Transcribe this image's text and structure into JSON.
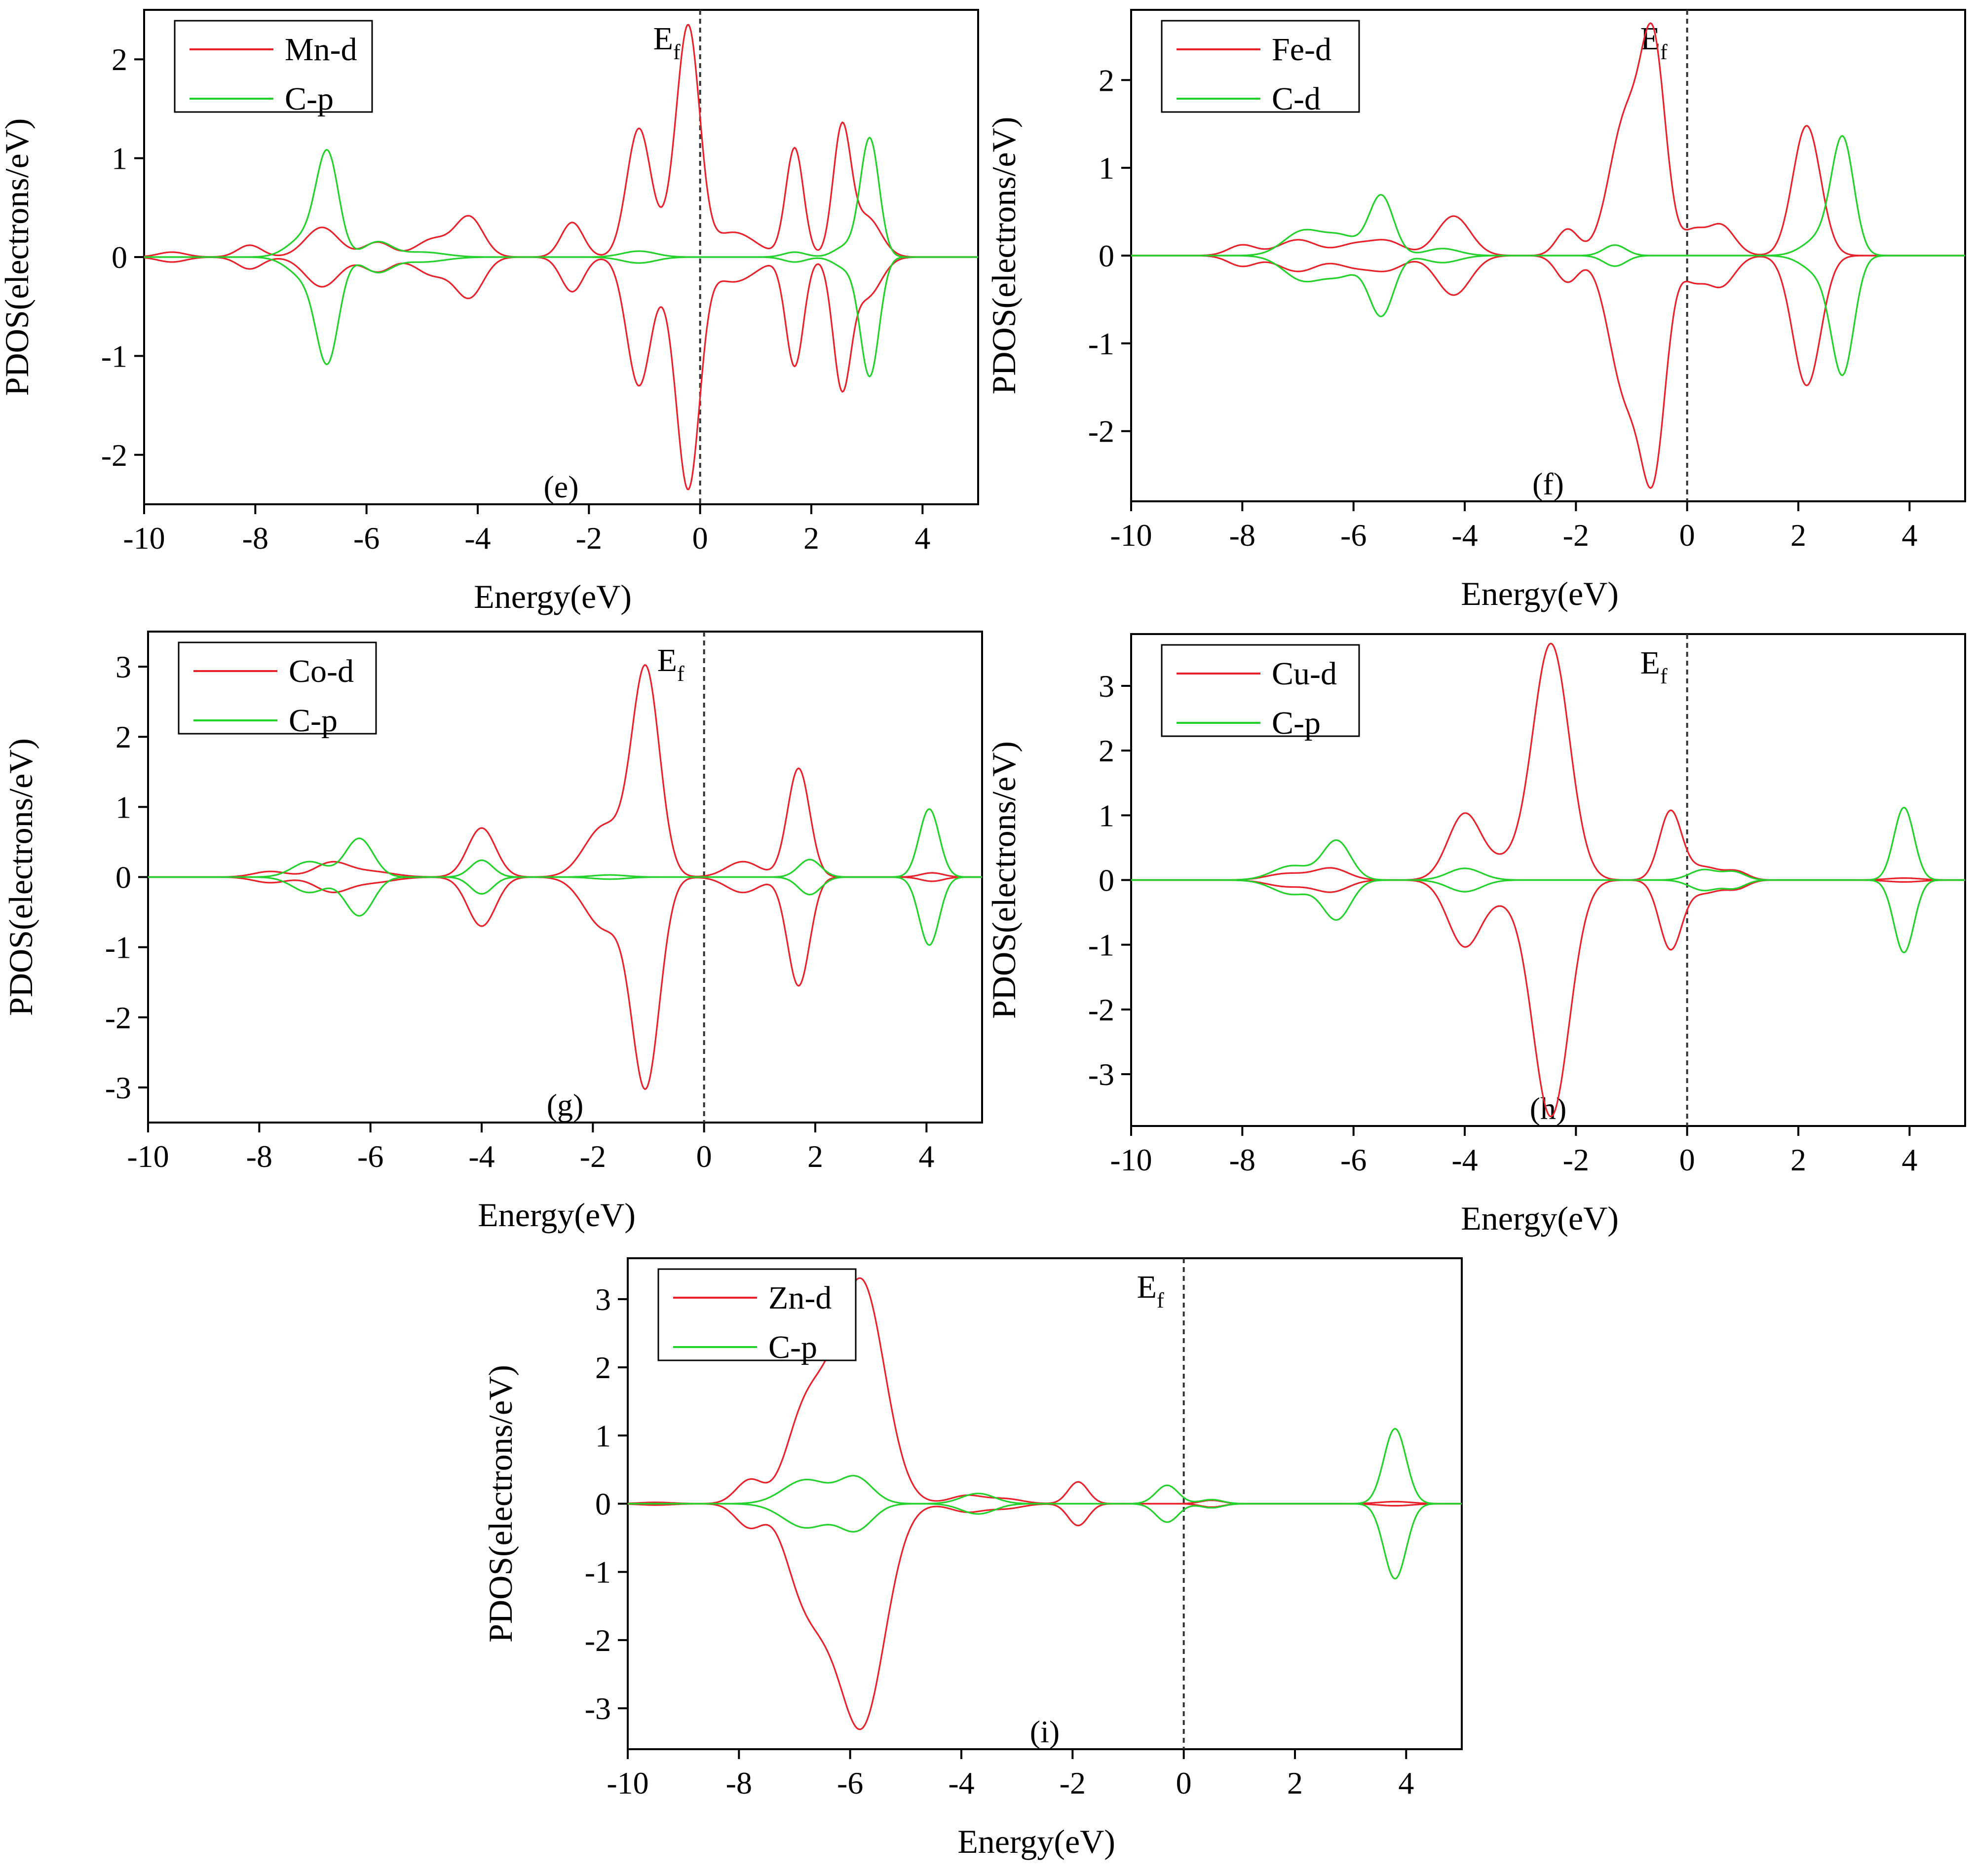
{
  "figure": {
    "description_free": true
  },
  "chart_data": [
    {
      "type": "line",
      "panel_label": "(e)",
      "xlabel": "Energy(eV)",
      "ylabel": "PDOS(electrons/eV)",
      "xlim": [
        -10,
        5
      ],
      "ylim": [
        -2.5,
        2.5
      ],
      "xticks": [
        -10,
        -8,
        -6,
        -4,
        -2,
        0,
        2,
        4
      ],
      "yticks": [
        -2,
        -1,
        0,
        1,
        2
      ],
      "fermi_label": "E",
      "fermi_sub": "f",
      "fermi_x": 0,
      "series": [
        {
          "name": "Mn-d",
          "color": "#e8212b",
          "peaks": [
            [
              -9.5,
              0.05,
              0.25
            ],
            [
              -8.1,
              0.12,
              0.22
            ],
            [
              -6.8,
              0.3,
              0.3
            ],
            [
              -5.8,
              0.15,
              0.25
            ],
            [
              -4.8,
              0.18,
              0.3
            ],
            [
              -4.15,
              0.4,
              0.25
            ],
            [
              -2.3,
              0.35,
              0.2
            ],
            [
              -1.1,
              1.3,
              0.22
            ],
            [
              -0.45,
              0.35,
              0.2
            ],
            [
              -0.2,
              2.15,
              0.2
            ],
            [
              0.6,
              0.25,
              0.4
            ],
            [
              1.7,
              1.1,
              0.16
            ],
            [
              2.55,
              1.28,
              0.16
            ],
            [
              3.0,
              0.4,
              0.25
            ]
          ]
        },
        {
          "name": "C-p",
          "color": "#22d12a",
          "peaks": [
            [
              -7.1,
              0.2,
              0.3
            ],
            [
              -6.7,
              1.0,
              0.2
            ],
            [
              -5.8,
              0.15,
              0.25
            ],
            [
              -5.0,
              0.05,
              0.4
            ],
            [
              -1.1,
              0.06,
              0.3
            ],
            [
              1.7,
              0.05,
              0.2
            ],
            [
              2.6,
              0.1,
              0.2
            ],
            [
              3.05,
              1.2,
              0.17
            ]
          ]
        }
      ]
    },
    {
      "type": "line",
      "panel_label": "(f)",
      "xlabel": "Energy(eV)",
      "ylabel": "PDOS(electrons/eV)",
      "xlim": [
        -10,
        5
      ],
      "ylim": [
        -2.8,
        2.8
      ],
      "xticks": [
        -10,
        -8,
        -6,
        -4,
        -2,
        0,
        2,
        4
      ],
      "yticks": [
        -2,
        -1,
        0,
        1,
        2
      ],
      "fermi_label": "E",
      "fermi_sub": "f",
      "fermi_x": 0,
      "series": [
        {
          "name": "Fe-d",
          "color": "#e8212b",
          "peaks": [
            [
              -8.0,
              0.12,
              0.25
            ],
            [
              -7.0,
              0.18,
              0.35
            ],
            [
              -6.0,
              0.12,
              0.3
            ],
            [
              -5.4,
              0.16,
              0.3
            ],
            [
              -4.2,
              0.45,
              0.3
            ],
            [
              -2.15,
              0.3,
              0.2
            ],
            [
              -1.1,
              1.55,
              0.3
            ],
            [
              -0.6,
              2.2,
              0.22
            ],
            [
              0.6,
              0.35,
              0.25
            ],
            [
              0.1,
              0.25,
              0.2
            ],
            [
              2.15,
              1.48,
              0.25
            ]
          ]
        },
        {
          "name": "C-d",
          "color": "#22d12a",
          "peaks": [
            [
              -6.9,
              0.28,
              0.35
            ],
            [
              -6.2,
              0.2,
              0.3
            ],
            [
              -5.5,
              0.68,
              0.22
            ],
            [
              -4.4,
              0.08,
              0.3
            ],
            [
              -1.3,
              0.12,
              0.2
            ],
            [
              2.8,
              1.28,
              0.2
            ],
            [
              2.4,
              0.2,
              0.3
            ]
          ]
        }
      ]
    },
    {
      "type": "line",
      "panel_label": "(g)",
      "xlabel": "Energy(eV)",
      "ylabel": "PDOS(electrons/eV)",
      "xlim": [
        -10,
        5
      ],
      "ylim": [
        -3.5,
        3.5
      ],
      "xticks": [
        -10,
        -8,
        -6,
        -4,
        -2,
        0,
        2,
        4
      ],
      "yticks": [
        -3,
        -2,
        -1,
        0,
        1,
        2,
        3
      ],
      "fermi_label": "E",
      "fermi_sub": "f",
      "fermi_x": 0,
      "series": [
        {
          "name": "Co-d",
          "color": "#e8212b",
          "peaks": [
            [
              -7.8,
              0.08,
              0.3
            ],
            [
              -6.7,
              0.2,
              0.3
            ],
            [
              -6.0,
              0.08,
              0.4
            ],
            [
              -4.0,
              0.7,
              0.25
            ],
            [
              -1.8,
              0.72,
              0.35
            ],
            [
              -1.05,
              2.95,
              0.25
            ],
            [
              0.7,
              0.22,
              0.3
            ],
            [
              1.7,
              1.55,
              0.2
            ],
            [
              4.1,
              0.06,
              0.2
            ]
          ]
        },
        {
          "name": "C-p",
          "color": "#22d12a",
          "peaks": [
            [
              -7.1,
              0.22,
              0.3
            ],
            [
              -6.2,
              0.55,
              0.25
            ],
            [
              -4.0,
              0.24,
              0.2
            ],
            [
              -1.7,
              0.03,
              0.3
            ],
            [
              1.9,
              0.25,
              0.2
            ],
            [
              4.05,
              0.97,
              0.18
            ]
          ]
        }
      ]
    },
    {
      "type": "line",
      "panel_label": "(h)",
      "xlabel": "Energy(eV)",
      "ylabel": "PDOS(electrons/eV)",
      "xlim": [
        -10,
        5
      ],
      "ylim": [
        -3.8,
        3.8
      ],
      "xticks": [
        -10,
        -8,
        -6,
        -4,
        -2,
        0,
        2,
        4
      ],
      "yticks": [
        -3,
        -2,
        -1,
        0,
        1,
        2,
        3
      ],
      "fermi_label": "E",
      "fermi_sub": "f",
      "fermi_x": 0,
      "series": [
        {
          "name": "Cu-d",
          "color": "#e8212b",
          "peaks": [
            [
              -7.2,
              0.1,
              0.35
            ],
            [
              -6.4,
              0.18,
              0.3
            ],
            [
              -4.0,
              1.02,
              0.3
            ],
            [
              -3.3,
              0.22,
              0.3
            ],
            [
              -2.45,
              3.65,
              0.33
            ],
            [
              -0.3,
              1.05,
              0.2
            ],
            [
              0.3,
              0.2,
              0.3
            ],
            [
              0.9,
              0.12,
              0.2
            ],
            [
              3.9,
              0.03,
              0.3
            ]
          ]
        },
        {
          "name": "C-p",
          "color": "#22d12a",
          "peaks": [
            [
              -7.1,
              0.22,
              0.35
            ],
            [
              -6.3,
              0.6,
              0.25
            ],
            [
              -4.0,
              0.18,
              0.3
            ],
            [
              0.3,
              0.16,
              0.25
            ],
            [
              0.85,
              0.12,
              0.2
            ],
            [
              3.9,
              1.12,
              0.18
            ]
          ]
        }
      ]
    },
    {
      "type": "line",
      "panel_label": "(i)",
      "xlabel": "Energy(eV)",
      "ylabel": "PDOS(electrons/eV)",
      "xlim": [
        -10,
        5
      ],
      "ylim": [
        -3.6,
        3.6
      ],
      "xticks": [
        -10,
        -8,
        -6,
        -4,
        -2,
        0,
        2,
        4
      ],
      "yticks": [
        -3,
        -2,
        -1,
        0,
        1,
        2,
        3
      ],
      "fermi_label": "E",
      "fermi_sub": "f",
      "fermi_x": 0,
      "series": [
        {
          "name": "Zn-d",
          "color": "#e8212b",
          "peaks": [
            [
              -9.5,
              0.02,
              0.3
            ],
            [
              -7.8,
              0.35,
              0.25
            ],
            [
              -6.9,
              1.0,
              0.3
            ],
            [
              -6.5,
              0.8,
              0.3
            ],
            [
              -5.8,
              3.25,
              0.42
            ],
            [
              -3.9,
              0.12,
              0.3
            ],
            [
              -3.2,
              0.07,
              0.3
            ],
            [
              -1.9,
              0.32,
              0.18
            ],
            [
              0.5,
              0.05,
              0.2
            ],
            [
              3.8,
              0.03,
              0.3
            ]
          ]
        },
        {
          "name": "C-p",
          "color": "#22d12a",
          "peaks": [
            [
              -6.8,
              0.35,
              0.4
            ],
            [
              -5.9,
              0.38,
              0.3
            ],
            [
              -3.7,
              0.15,
              0.3
            ],
            [
              -0.3,
              0.27,
              0.2
            ],
            [
              0.5,
              0.06,
              0.2
            ],
            [
              3.8,
              1.1,
              0.2
            ]
          ]
        }
      ]
    }
  ]
}
